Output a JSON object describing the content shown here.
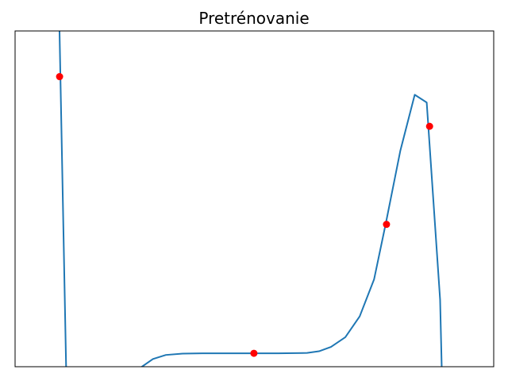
{
  "chart_data": {
    "type": "line",
    "title": "Pretrénovanie",
    "xlabel": "",
    "ylabel": "",
    "xlim": [
      0,
      1
    ],
    "ylim": [
      0,
      1
    ],
    "axes_visible": false,
    "grid": false,
    "series": [
      {
        "color": "#1f77b4",
        "x": [
          0.092,
          0.108,
          0.25,
          0.265,
          0.288,
          0.315,
          0.35,
          0.4,
          0.45,
          0.5,
          0.55,
          0.61,
          0.635,
          0.66,
          0.69,
          0.72,
          0.75,
          0.775,
          0.805,
          0.835,
          0.86,
          0.888,
          0.89,
          0.893
        ],
        "y": [
          1.06,
          -0.1,
          -0.1,
          0.0,
          0.023,
          0.035,
          0.039,
          0.04,
          0.04,
          0.04,
          0.04,
          0.041,
          0.046,
          0.059,
          0.088,
          0.15,
          0.26,
          0.43,
          0.644,
          0.81,
          0.787,
          0.2,
          0.08,
          -0.1
        ]
      }
    ],
    "markers": {
      "color": "#ff0000",
      "x": [
        0.093,
        0.499,
        0.776,
        0.866
      ],
      "y": [
        0.864,
        0.04,
        0.424,
        0.716
      ]
    }
  }
}
